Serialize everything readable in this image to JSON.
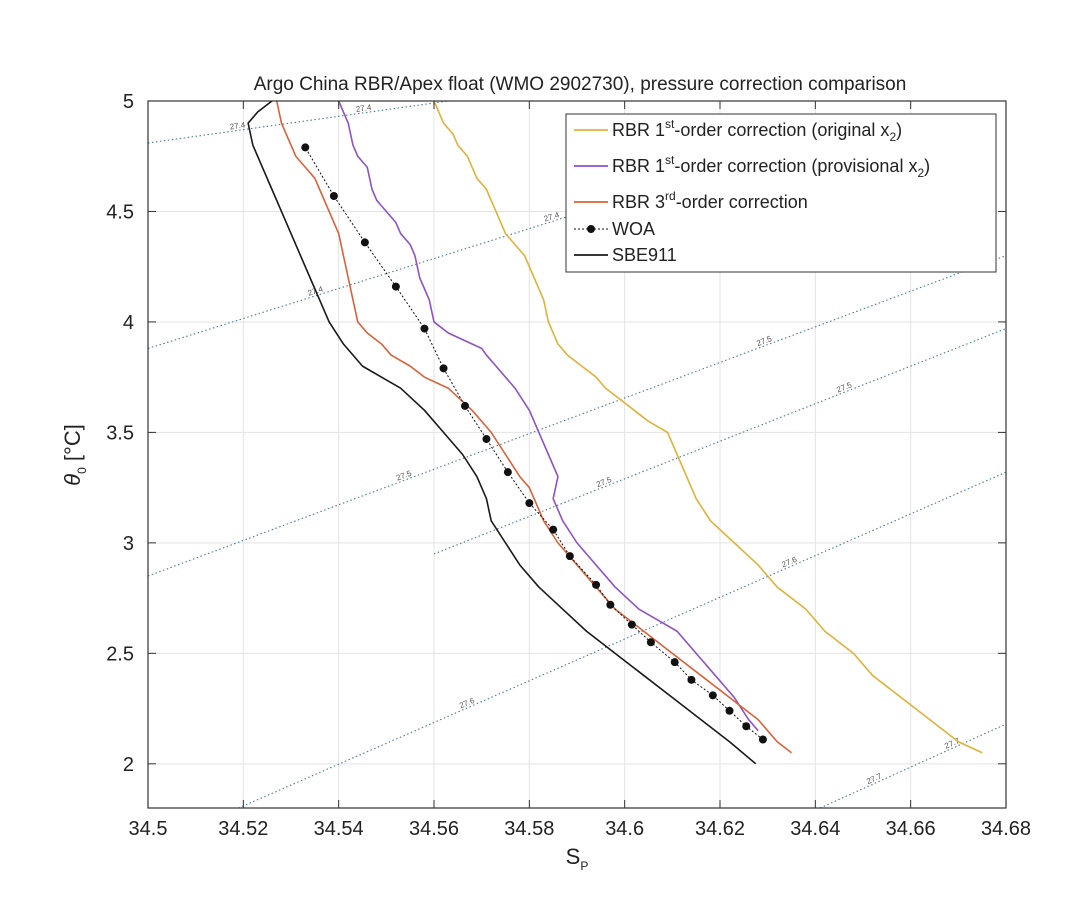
{
  "chart_data": {
    "type": "line",
    "title": "Argo China RBR/Apex float (WMO 2902730), pressure correction comparison",
    "xlabel": "S",
    "xlabel_sub": "P",
    "ylabel_theta": "θ",
    "ylabel_sub": "0",
    "ylabel_unit": " [°C]",
    "xlim": [
      34.5,
      34.68
    ],
    "ylim": [
      1.8,
      5.0
    ],
    "x_ticks": [
      34.5,
      34.52,
      34.54,
      34.56,
      34.58,
      34.6,
      34.62,
      34.64,
      34.66,
      34.68
    ],
    "x_tick_labels": [
      "34.5",
      "34.52",
      "34.54",
      "34.56",
      "34.58",
      "34.6",
      "34.62",
      "34.64",
      "34.66",
      "34.68"
    ],
    "y_ticks": [
      2,
      2.5,
      3,
      3.5,
      4,
      4.5,
      5
    ],
    "y_tick_labels": [
      "2",
      "2.5",
      "3",
      "3.5",
      "4",
      "4.5",
      "5"
    ],
    "grid": true,
    "legend_position": "top-right",
    "legend": [
      {
        "pre": "RBR 1",
        "sup": "st",
        "mid": "-order correction (original x",
        "sub": "2",
        "post": ")"
      },
      {
        "pre": "RBR 1",
        "sup": "st",
        "mid": "-order correction (provisional x",
        "sub": "2",
        "post": ")"
      },
      {
        "pre": "RBR 3",
        "sup": "rd",
        "mid": "-order correction",
        "sub": "",
        "post": ""
      },
      {
        "pre": "WOA",
        "sup": "",
        "mid": "",
        "sub": "",
        "post": ""
      },
      {
        "pre": "SBE911",
        "sup": "",
        "mid": "",
        "sub": "",
        "post": ""
      }
    ],
    "series": [
      {
        "name": "RBR 1st-order correction (original x2)",
        "color": "#e0b23a",
        "x": [
          34.675,
          34.67,
          34.664,
          34.658,
          34.652,
          34.648,
          34.642,
          34.638,
          34.632,
          34.628,
          34.623,
          34.618,
          34.615,
          34.613,
          34.611,
          34.609,
          34.605,
          34.602,
          34.599,
          34.596,
          34.594,
          34.591,
          34.588,
          34.586,
          34.585,
          34.584,
          34.583,
          34.581,
          34.579,
          34.577,
          34.575,
          34.573,
          34.571,
          34.569,
          34.568,
          34.567,
          34.565,
          34.564,
          34.562,
          34.56
        ],
        "y": [
          2.05,
          2.1,
          2.2,
          2.3,
          2.4,
          2.5,
          2.6,
          2.7,
          2.8,
          2.9,
          3.0,
          3.1,
          3.2,
          3.3,
          3.4,
          3.5,
          3.55,
          3.6,
          3.65,
          3.7,
          3.75,
          3.8,
          3.85,
          3.9,
          3.95,
          4.0,
          4.1,
          4.2,
          4.3,
          4.35,
          4.4,
          4.5,
          4.6,
          4.65,
          4.7,
          4.75,
          4.8,
          4.85,
          4.9,
          5.0
        ]
      },
      {
        "name": "RBR 1st-order correction (provisional x2)",
        "color": "#8e52c8",
        "x": [
          34.628,
          34.626,
          34.623,
          34.619,
          34.615,
          34.611,
          34.607,
          34.603,
          34.598,
          34.594,
          34.59,
          34.587,
          34.585,
          34.586,
          34.584,
          34.582,
          34.58,
          34.577,
          34.575,
          34.573,
          34.571,
          34.57,
          34.568,
          34.566,
          34.563,
          34.56,
          34.559,
          34.557,
          34.556,
          34.555,
          34.553,
          34.552,
          34.55,
          34.548,
          34.547,
          34.546,
          34.544,
          34.543,
          34.542,
          34.54
        ],
        "y": [
          2.15,
          2.2,
          2.3,
          2.4,
          2.5,
          2.6,
          2.65,
          2.7,
          2.8,
          2.9,
          3.0,
          3.1,
          3.2,
          3.3,
          3.4,
          3.5,
          3.6,
          3.7,
          3.75,
          3.8,
          3.85,
          3.88,
          3.9,
          3.92,
          3.95,
          4.0,
          4.1,
          4.2,
          4.3,
          4.35,
          4.4,
          4.45,
          4.5,
          4.55,
          4.6,
          4.7,
          4.75,
          4.8,
          4.9,
          5.0
        ]
      },
      {
        "name": "RBR 3rd-order correction",
        "color": "#d9623b",
        "x": [
          34.635,
          34.632,
          34.628,
          34.622,
          34.616,
          34.61,
          34.604,
          34.598,
          34.594,
          34.59,
          34.586,
          34.583,
          34.581,
          34.58,
          34.578,
          34.575,
          34.572,
          34.568,
          34.563,
          34.558,
          34.555,
          34.551,
          34.549,
          34.546,
          34.544,
          34.543,
          34.542,
          34.541,
          34.54,
          34.538,
          34.536,
          34.535,
          34.533,
          34.531,
          34.53,
          34.529,
          34.528,
          34.527
        ],
        "y": [
          2.05,
          2.1,
          2.2,
          2.3,
          2.4,
          2.5,
          2.6,
          2.7,
          2.8,
          2.9,
          3.0,
          3.1,
          3.2,
          3.25,
          3.3,
          3.4,
          3.5,
          3.6,
          3.7,
          3.75,
          3.8,
          3.85,
          3.9,
          3.95,
          4.0,
          4.1,
          4.2,
          4.3,
          4.4,
          4.5,
          4.6,
          4.65,
          4.7,
          4.75,
          4.8,
          4.85,
          4.9,
          5.0
        ]
      },
      {
        "name": "WOA",
        "color": "#111111",
        "markers": true,
        "x": [
          34.629,
          34.6255,
          34.622,
          34.6185,
          34.614,
          34.6105,
          34.6055,
          34.6015,
          34.597,
          34.594,
          34.5885,
          34.585,
          34.58,
          34.5755,
          34.571,
          34.5665,
          34.562,
          34.558,
          34.552,
          34.5455,
          34.539,
          34.533
        ],
        "y": [
          2.11,
          2.17,
          2.24,
          2.31,
          2.38,
          2.46,
          2.55,
          2.63,
          2.72,
          2.81,
          2.94,
          3.06,
          3.18,
          3.32,
          3.47,
          3.62,
          3.79,
          3.97,
          4.16,
          4.36,
          4.57,
          4.79
        ]
      },
      {
        "name": "SBE911",
        "color": "#1a1a1a",
        "x": [
          34.6275,
          34.622,
          34.616,
          34.61,
          34.604,
          34.598,
          34.592,
          34.587,
          34.582,
          34.578,
          34.575,
          34.572,
          34.571,
          34.569,
          34.566,
          34.562,
          34.558,
          34.553,
          34.549,
          34.545,
          34.541,
          34.538,
          34.536,
          34.534,
          34.532,
          34.53,
          34.528,
          34.526,
          34.524,
          34.522,
          34.521,
          34.523,
          34.526
        ],
        "y": [
          2.0,
          2.1,
          2.2,
          2.3,
          2.4,
          2.5,
          2.6,
          2.7,
          2.8,
          2.9,
          3.0,
          3.1,
          3.2,
          3.3,
          3.4,
          3.5,
          3.6,
          3.7,
          3.75,
          3.8,
          3.9,
          4.0,
          4.1,
          4.2,
          4.3,
          4.4,
          4.5,
          4.6,
          4.7,
          4.8,
          4.9,
          4.95,
          5.0
        ]
      }
    ],
    "isopycnals": [
      {
        "label": "27.4",
        "x": [
          34.5,
          34.563
        ],
        "y": [
          4.81,
          5.0
        ],
        "color": "#4a7a98"
      },
      {
        "label": "27.4",
        "x": [
          34.5,
          34.618
        ],
        "y": [
          3.88,
          4.68
        ],
        "color": "#4a7a98"
      },
      {
        "label": "27.5",
        "x": [
          34.5,
          34.68
        ],
        "y": [
          2.85,
          4.3
        ],
        "color": "#4a7a98"
      },
      {
        "label": "27.5",
        "x": [
          34.56,
          34.68
        ],
        "y": [
          2.95,
          3.97
        ],
        "color": "#4a7a98"
      },
      {
        "label": "27.6",
        "x": [
          34.519,
          34.68
        ],
        "y": [
          1.8,
          3.32
        ],
        "color": "#4a7a98"
      },
      {
        "label": "27.7",
        "x": [
          34.641,
          34.68
        ],
        "y": [
          1.8,
          2.18
        ],
        "color": "#4a7a98"
      }
    ]
  }
}
